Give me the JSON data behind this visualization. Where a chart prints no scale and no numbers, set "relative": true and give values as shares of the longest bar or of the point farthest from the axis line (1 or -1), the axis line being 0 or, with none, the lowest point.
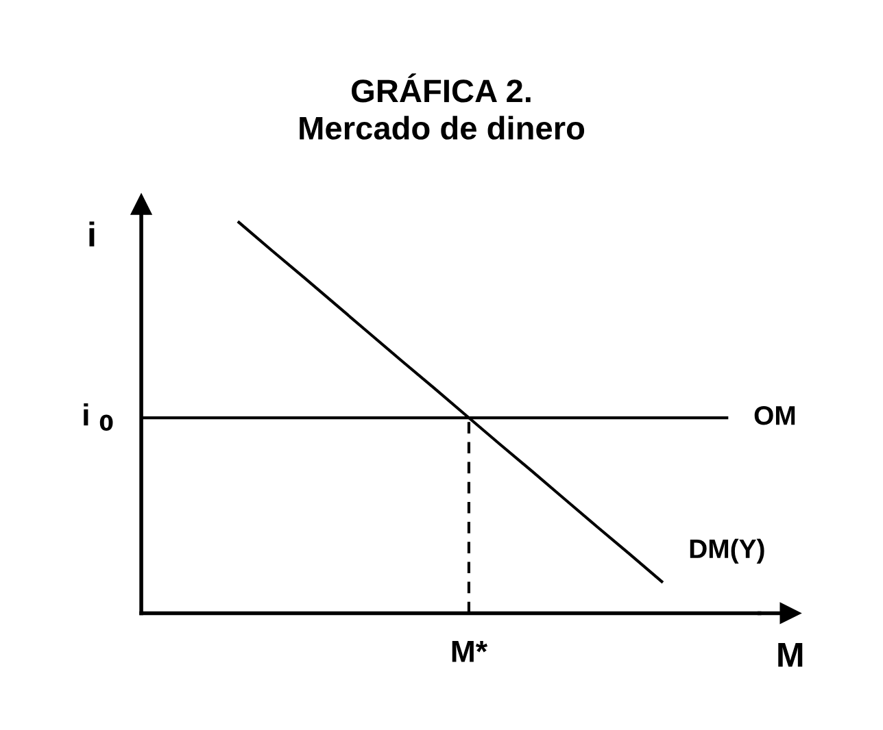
{
  "chart_data": {
    "type": "line",
    "title": "GRÁFICA 2.\nMercado de dinero",
    "xlabel": "M",
    "ylabel": "i",
    "relative": true,
    "categories": [
      null,
      null,
      null,
      null,
      null,
      null,
      null,
      null,
      null,
      null,
      null,
      null,
      null,
      null,
      null,
      null,
      null,
      null,
      null,
      null
    ],
    "annotations": [
      "M*",
      "i $_{0}$"
    ],
    "series": [
      {
        "name": "DM(Y)",
        "color": "#000000",
        "values": [
          null,
          null,
          null,
          1,
          0.929,
          0.859,
          0.788,
          0.717,
          0.646,
          0.576,
          0.505,
          0.434,
          0.364,
          0.293,
          0.222,
          0.152,
          0.081,
          null,
          null,
          null
        ]
      },
      {
        "name": "OM",
        "color": "#000000",
        "values": [
          0.5,
          0.5,
          0.5,
          0.5,
          0.5,
          0.5,
          0.5,
          0.5,
          0.5,
          0.5,
          0.5,
          0.5,
          0.5,
          0.5,
          0.5,
          0.5,
          0.5,
          0.5,
          0.5,
          null
        ]
      }
    ],
    "legend": false,
    "marker": "none"
  }
}
